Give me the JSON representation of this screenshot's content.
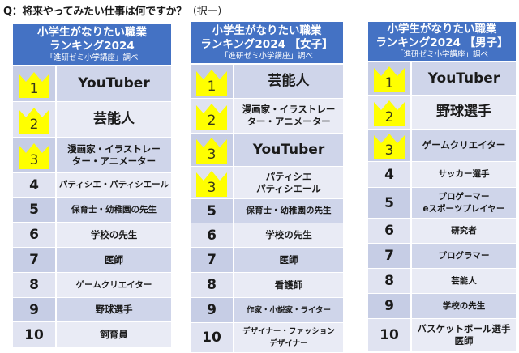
{
  "question": {
    "text": "Q：将来やってみたい仕事は何ですか？",
    "choice": "（択一）"
  },
  "tables": [
    {
      "title_line1": "小学生がなりたい職業",
      "title_line2": "ランキング2024",
      "source": "「進研ゼミ小学講座」調べ",
      "rows": [
        {
          "rank": "1",
          "name": "YouTuber"
        },
        {
          "rank": "2",
          "name": "芸能人"
        },
        {
          "rank": "3",
          "name": "漫画家・イラストレー\nター・アニメーター"
        },
        {
          "rank": "4",
          "name": "パティシエ・パティシエール"
        },
        {
          "rank": "5",
          "name": "保育士・幼稚園の先生"
        },
        {
          "rank": "6",
          "name": "学校の先生"
        },
        {
          "rank": "7",
          "name": "医師"
        },
        {
          "rank": "8",
          "name": "ゲームクリエイター"
        },
        {
          "rank": "9",
          "name": "野球選手"
        },
        {
          "rank": "10",
          "name": "飼育員"
        }
      ]
    },
    {
      "title_line1": "小学生がなりたい職業",
      "title_line2": "ランキング2024 【女子】",
      "source": "「進研ゼミ小学講座」調べ",
      "rows": [
        {
          "rank": "1",
          "name": "芸能人"
        },
        {
          "rank": "2",
          "name": "漫画家・イラストレー\nター・アニメーター"
        },
        {
          "rank": "3",
          "name": "YouTuber"
        },
        {
          "rank": "3",
          "name": "パティシエ\nパティシエール"
        },
        {
          "rank": "5",
          "name": "保育士・幼稚園の先生"
        },
        {
          "rank": "6",
          "name": "学校の先生"
        },
        {
          "rank": "7",
          "name": "医師"
        },
        {
          "rank": "8",
          "name": "看護師"
        },
        {
          "rank": "9",
          "name": "作家・小説家・ライター"
        },
        {
          "rank": "10",
          "name": "デザイナー・ファッション\nデザイナー"
        }
      ]
    },
    {
      "title_line1": "小学生がなりたい職業",
      "title_line2": "ランキング2024 【男子】",
      "source": "「進研ゼミ小学講座」調べ",
      "rows": [
        {
          "rank": "1",
          "name": "YouTuber"
        },
        {
          "rank": "2",
          "name": "野球選手"
        },
        {
          "rank": "3",
          "name": "ゲームクリエイター"
        },
        {
          "rank": "4",
          "name": "サッカー選手"
        },
        {
          "rank": "5",
          "name": "プロゲーマー\neスポーツプレイヤー"
        },
        {
          "rank": "6",
          "name": "研究者"
        },
        {
          "rank": "7",
          "name": "プログラマー"
        },
        {
          "rank": "8",
          "name": "芸能人"
        },
        {
          "rank": "9",
          "name": "学校の先生"
        },
        {
          "rank": "10",
          "name": "バスケットボール選手\n医師"
        }
      ]
    }
  ],
  "colors": {
    "header": "#4472C4",
    "row_dark": "#CFD5EA",
    "row_light": "#E9EBF5",
    "crown": "#FFFF00"
  }
}
